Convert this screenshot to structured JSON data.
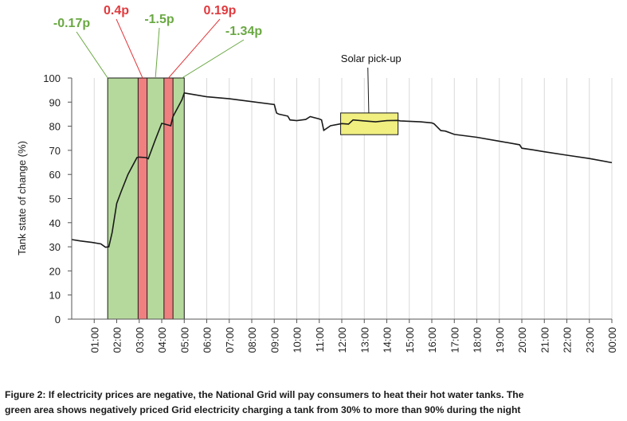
{
  "chart_data": {
    "type": "line",
    "title": "",
    "xlabel": "",
    "ylabel": "Tank state of change (%)",
    "ylim": [
      0,
      100
    ],
    "yticks": [
      0,
      10,
      20,
      30,
      40,
      50,
      60,
      70,
      80,
      90,
      100
    ],
    "xlim": [
      0,
      24
    ],
    "xticks": [
      "01:00",
      "02:00",
      "03:00",
      "04:00",
      "05:00",
      "06:00",
      "07:00",
      "08:00",
      "09:00",
      "10:00",
      "11:00",
      "12:00",
      "13:00",
      "14:00",
      "15:00",
      "16:00",
      "17:00",
      "18:00",
      "19:00",
      "20:00",
      "21:00",
      "22:00",
      "23:00",
      "00:00"
    ],
    "grid": "vertical",
    "series": [
      {
        "name": "",
        "color": "#1a1a1a",
        "x": [
          0.0,
          0.4,
          0.9,
          1.3,
          1.5,
          1.65,
          1.8,
          2.0,
          2.2,
          2.5,
          2.9,
          3.0,
          3.3,
          3.4,
          3.7,
          4.0,
          4.1,
          4.4,
          4.5,
          4.9,
          5.0,
          5.5,
          6.0,
          7.0,
          8.0,
          9.0,
          9.1,
          9.2,
          9.6,
          9.7,
          10.0,
          10.4,
          10.6,
          11.0,
          11.1,
          11.2,
          11.5,
          12.0,
          12.3,
          12.5,
          13.0,
          13.5,
          14.0,
          14.5,
          14.6,
          15.5,
          16.0,
          16.1,
          16.4,
          16.6,
          17.0,
          18.0,
          19.0,
          19.9,
          20.0,
          20.5,
          21.0,
          22.0,
          23.0,
          24.0
        ],
        "y": [
          33,
          32.4,
          31.8,
          31.2,
          29.8,
          30.0,
          36,
          48,
          53,
          60,
          67,
          67.2,
          67.0,
          66.5,
          74,
          81.2,
          81.0,
          80.2,
          84,
          91,
          93.8,
          93.0,
          92.2,
          91.4,
          90.2,
          89.0,
          85.5,
          85.0,
          84.2,
          82.6,
          82.3,
          82.8,
          84.0,
          83.0,
          82.6,
          78.3,
          80.2,
          81.1,
          80.9,
          82.6,
          82.2,
          81.8,
          82.3,
          82.4,
          82.2,
          81.8,
          81.4,
          81.0,
          78.2,
          78.0,
          76.6,
          75.4,
          73.8,
          72.3,
          70.9,
          70.2,
          69.4,
          68.0,
          66.6,
          64.9
        ]
      }
    ],
    "regions": [
      {
        "kind": "negative-price",
        "color": "#b5d99c",
        "x0": 1.6,
        "x1": 5.0
      },
      {
        "kind": "positive-price",
        "color": "#f08080",
        "x0": 2.95,
        "x1": 3.35
      },
      {
        "kind": "positive-price",
        "color": "#f08080",
        "x0": 4.1,
        "x1": 4.5
      },
      {
        "kind": "highlight",
        "color": "#f0ef80",
        "x0": 11.95,
        "x1": 14.5,
        "y0": 76.5,
        "y1": 85.5
      }
    ],
    "price_labels": [
      {
        "text": "-0.17p",
        "color": "#6aa843",
        "x": 1.6
      },
      {
        "text": "0.4p",
        "color": "#e03a3e",
        "x": 3.15
      },
      {
        "text": "-1.5p",
        "color": "#6aa843",
        "x": 3.72
      },
      {
        "text": "0.19p",
        "color": "#e03a3e",
        "x": 4.3
      },
      {
        "text": "-1.34p",
        "color": "#6aa843",
        "x": 4.9
      }
    ],
    "annotations": [
      {
        "text": "Solar pick-up",
        "x": 13.2,
        "y": 86
      }
    ]
  },
  "caption": {
    "line1": "Figure 2: If electricity prices are negative, the National Grid will pay consumers to heat their hot water tanks. The",
    "line2": "green area shows negatively priced Grid electricity charging a tank from 30% to more than 90% during the night"
  }
}
